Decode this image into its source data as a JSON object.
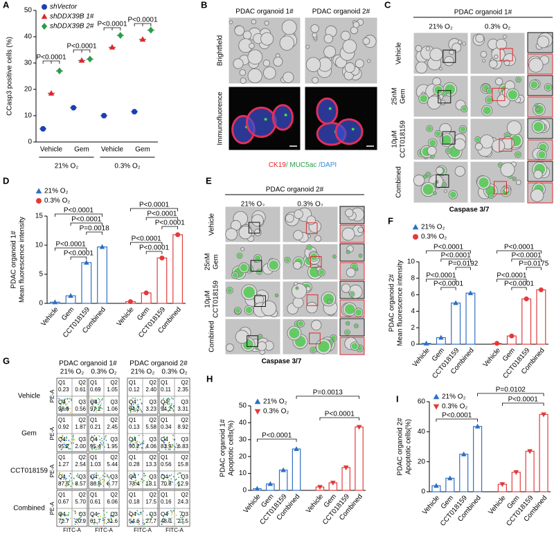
{
  "chart_data": [
    {
      "type": "dot",
      "label": "A",
      "ylabel": [
        "CCasp3 positive cells (%)"
      ],
      "categories": [
        "Vehicle",
        "Gem",
        "Vehicle",
        "Gem"
      ],
      "groups": [
        "21% O₂",
        "0.3% O₂"
      ],
      "series": [
        {
          "name": "shVector",
          "color": "#1c3fb5",
          "marker": "circle",
          "values": [
            5,
            13,
            10,
            11.5
          ]
        },
        {
          "name": "shDDX39B 1#",
          "color": "#e0262b",
          "marker": "triangle",
          "values": [
            18.5,
            31,
            36,
            39
          ]
        },
        {
          "name": "shDDX39B 2#",
          "color": "#2a9d4a",
          "marker": "diamond",
          "values": [
            27,
            31.5,
            40.5,
            42.5
          ]
        }
      ],
      "ylim": [
        0,
        50
      ],
      "yticks": [
        0,
        10,
        20,
        30,
        40,
        50
      ],
      "annotations": [
        "P<0.0001",
        "P<0.0001",
        "P<0.0001",
        "P<0.0001"
      ]
    },
    {
      "type": "bar",
      "label": "D",
      "ylabel": [
        "PDAC organoid 1#",
        "Mean fluorescence intensity"
      ],
      "categories": [
        "Vehicle",
        "Gem",
        "CCT018159",
        "Combined"
      ],
      "series": [
        {
          "name": "21% O₂",
          "color": "#2f6fc4",
          "marker": "triangle",
          "values": [
            0.2,
            1.3,
            7,
            9.7
          ]
        },
        {
          "name": "0.3% O₂",
          "color": "#e23a3a",
          "marker": "circle",
          "values": [
            0.3,
            1.8,
            7.8,
            11.8
          ]
        }
      ],
      "ylim": [
        0,
        15
      ],
      "yticks": [
        0,
        5,
        10,
        15
      ],
      "annotations": [
        "P<0.0001",
        "P<0.0001",
        "P=0.0018",
        "P<0.0001",
        "P<0.0001",
        "P<0.0001",
        "P<0.0001",
        "P<0.0001",
        "P<0.0001",
        "P<0.0001"
      ]
    },
    {
      "type": "bar",
      "label": "F",
      "ylabel": [
        "PDAC organoid 2#",
        "Mean fluorescence intensity"
      ],
      "categories": [
        "Vehicle",
        "Gem",
        "CCT018159",
        "Combined"
      ],
      "series": [
        {
          "name": "21% O₂",
          "color": "#2f6fc4",
          "marker": "triangle",
          "values": [
            0.1,
            0.8,
            5,
            6.2
          ]
        },
        {
          "name": "0.3% O₂",
          "color": "#e23a3a",
          "marker": "circle",
          "values": [
            0.1,
            1,
            5.5,
            6.6
          ]
        }
      ],
      "ylim": [
        0,
        10
      ],
      "yticks": [
        0,
        2,
        4,
        6,
        8,
        10
      ],
      "annotations": [
        "P<0.0001",
        "P<0.0001",
        "P=0.0192",
        "P<0.0001",
        "P<0.0001",
        "P<0.0001",
        "P<0.0001",
        "P=0.0175",
        "P<0.0001",
        "P<0.0001"
      ]
    },
    {
      "type": "bar",
      "label": "H",
      "ylabel": [
        "PDAC organoid 1#",
        "Apoptotic cells(%)"
      ],
      "categories": [
        "Vehicle",
        "Gem",
        "CCT018159",
        "Combined"
      ],
      "series": [
        {
          "name": "21% O₂",
          "color": "#2f6fc4",
          "marker": "triangle",
          "values": [
            1,
            3.8,
            12,
            24.5
          ]
        },
        {
          "name": "0.3% O₂",
          "color": "#e23a3a",
          "marker": "triangle-down",
          "values": [
            2,
            4.5,
            13.5,
            37.5
          ]
        }
      ],
      "ylim": [
        0,
        50
      ],
      "yticks": [
        0,
        10,
        20,
        30,
        40,
        50
      ],
      "annotations": [
        "P=0.0013",
        "P<0.0001",
        "P<0.0001"
      ]
    },
    {
      "type": "bar",
      "label": "I",
      "ylabel": [
        "PDAC organoid 2#",
        "Apoptotic cells(%)"
      ],
      "categories": [
        "Vehicle",
        "Gem",
        "CCT018159",
        "Combined"
      ],
      "series": [
        {
          "name": "21% O₂",
          "color": "#2f6fc4",
          "marker": "triangle",
          "values": [
            4,
            9,
            25,
            43.5
          ]
        },
        {
          "name": "0.3% O₂",
          "color": "#e23a3a",
          "marker": "triangle-down",
          "values": [
            5,
            13,
            27,
            51.5
          ]
        }
      ],
      "ylim": [
        0,
        60
      ],
      "yticks": [
        0,
        20,
        40,
        60
      ],
      "annotations": [
        "P=0.0102",
        "P<0.0001",
        "P<0.0001"
      ]
    }
  ],
  "staining": {
    "label": "B",
    "columns": [
      "PDAC organoid 1#",
      "PDAC organoid 2#"
    ],
    "rows": [
      "Brightfield",
      "Immunofluorence"
    ],
    "stain": [
      "CK19",
      "/ MUC5ac",
      " /DAPI"
    ]
  },
  "caspase_1": {
    "label": "C",
    "title": "PDAC organoid 1#",
    "conditions": [
      "21% O₂",
      "0.3% O₂"
    ],
    "rows": [
      [
        "Vehicle"
      ],
      [
        "25nM",
        "Gem"
      ],
      [
        "10μM",
        "CCT018159"
      ],
      [
        "Combined"
      ]
    ],
    "caption": "Caspase 3/7"
  },
  "caspase_2": {
    "label": "E",
    "title": "PDAC organoid 2#",
    "conditions": [
      "21% O₂",
      "0.3% O₂"
    ],
    "rows": [
      [
        "Vehicle"
      ],
      [
        "25nM",
        "Gem"
      ],
      [
        "10μM",
        "CCT018159"
      ],
      [
        "Combined"
      ]
    ],
    "caption": "Caspase 3/7"
  },
  "flow": {
    "label": "G",
    "headers": [
      "PDAC organoid 1#",
      "PDAC organoid 2#"
    ],
    "conditions": [
      "21% O₂",
      "0.3% O₂"
    ],
    "rows": [
      "Vehicle",
      "Gem",
      "CCT018159",
      "Combined"
    ],
    "quadrants": [
      "Q1",
      "Q2",
      "Q3",
      "Q4"
    ],
    "y_axis": "PE-A",
    "x_axis": "FITC-A",
    "values": [
      [
        [
          "0.23",
          "0.61",
          "0.56",
          "98.6"
        ],
        [
          "0.69",
          "1.05",
          "1.06",
          "97.2"
        ],
        [
          "0.12",
          "2.40",
          "3.23",
          "94.2"
        ],
        [
          "0.11",
          "2.35",
          "3.31",
          "94.2"
        ]
      ],
      [
        [
          "0.92",
          "1.87",
          "2.00",
          "95.2"
        ],
        [
          "0.21",
          "2.45",
          "1.95",
          "95.4"
        ],
        [
          "0.13",
          "5.58",
          "4.06",
          "90.2"
        ],
        [
          "0.34",
          "8.92",
          "6.83",
          "83.9"
        ]
      ],
      [
        [
          "1.27",
          "2.54",
          "8.57",
          "87.6"
        ],
        [
          "1.03",
          "5.44",
          "6.77",
          "86.8"
        ],
        [
          "0.28",
          "13.3",
          "13.1",
          "73.4"
        ],
        [
          "0.56",
          "15.8",
          "12.9",
          "70.8"
        ]
      ],
      [
        [
          "0.67",
          "5.70",
          "20.9",
          "72.7"
        ],
        [
          "0.61",
          "6.06",
          "31.6",
          "61.7"
        ],
        [
          "0.18",
          "17.5",
          "27.7",
          "54.6"
        ],
        [
          "0.16",
          "24.3",
          "27.5",
          "48.0"
        ]
      ]
    ]
  }
}
